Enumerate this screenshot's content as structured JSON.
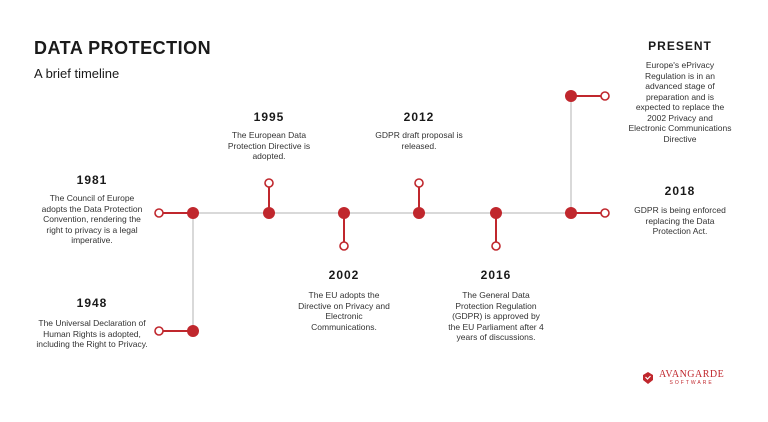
{
  "header": {
    "title": "DATA PROTECTION",
    "subtitle": "A brief timeline"
  },
  "colors": {
    "accent": "#c0272d",
    "line": "#d9d9d9"
  },
  "events": [
    {
      "year": "1948",
      "text": "The Universal Declaration of Human Rights is adopted, including the Right to Privacy."
    },
    {
      "year": "1981",
      "text": "The Council of Europe adopts the Data Protection Convention, rendering the right to privacy is a legal imperative."
    },
    {
      "year": "1995",
      "text": "The European Data Protection Directive is adopted."
    },
    {
      "year": "2002",
      "text": "The EU adopts the Directive on Privacy and Electronic Communications."
    },
    {
      "year": "2012",
      "text": "GDPR draft proposal is released."
    },
    {
      "year": "2016",
      "text": "The General Data Protection Regulation (GDPR) is approved by the EU Parliament after 4 years of discussions."
    },
    {
      "year": "2018",
      "text": "GDPR is being enforced replacing the Data Protection Act."
    },
    {
      "year": "PRESENT",
      "text": "Europe's ePrivacy Regulation is in an advanced stage of preparation and is expected to replace the 2002 Privacy and Electronic Communications Directive"
    }
  ],
  "logo": {
    "name": "AVANGARDE",
    "sub": "SOFTWARE"
  }
}
